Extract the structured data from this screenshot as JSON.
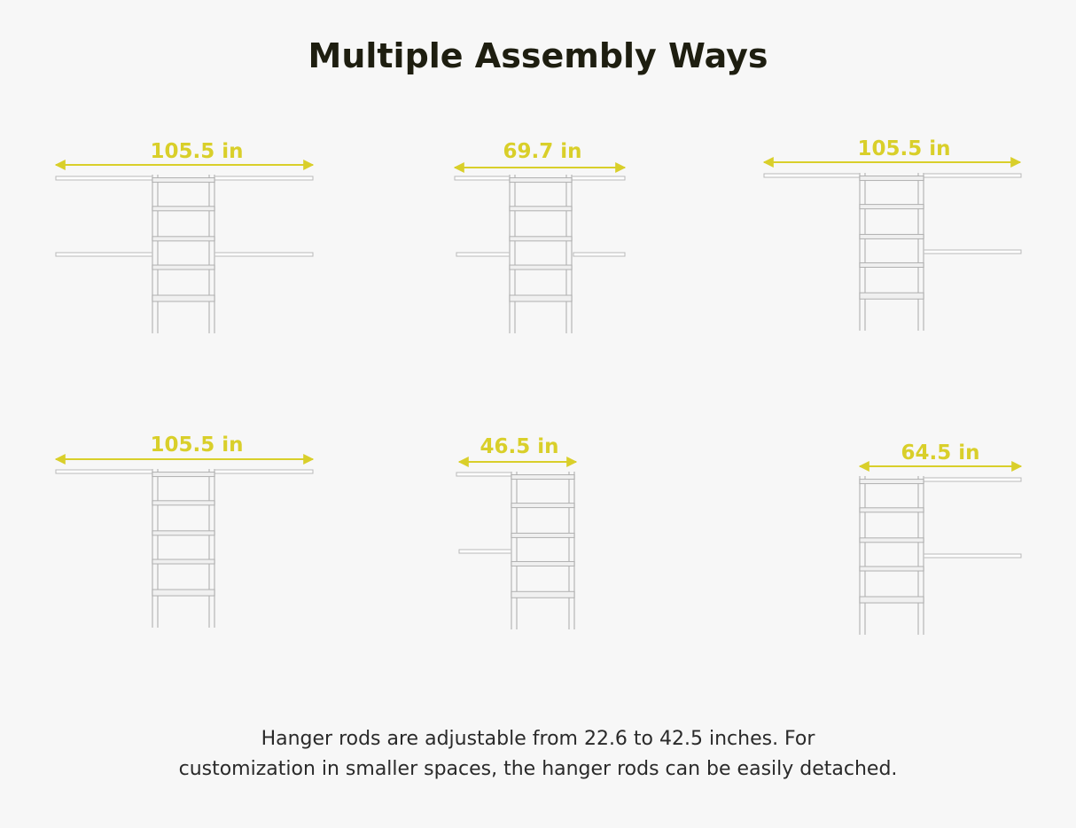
{
  "header": {
    "title": "Multiple Assembly Ways"
  },
  "configurations": [
    {
      "label": "105.5 in"
    },
    {
      "label": "69.7 in"
    },
    {
      "label": "105.5 in"
    },
    {
      "label": "105.5 in"
    },
    {
      "label": "46.5 in"
    },
    {
      "label": "64.5 in"
    }
  ],
  "description": {
    "lines": [
      "Hanger rods are adjustable from 22.6 to 42.5 inches. For",
      "customization in smaller spaces, the hanger rods can be easily detached."
    ]
  }
}
